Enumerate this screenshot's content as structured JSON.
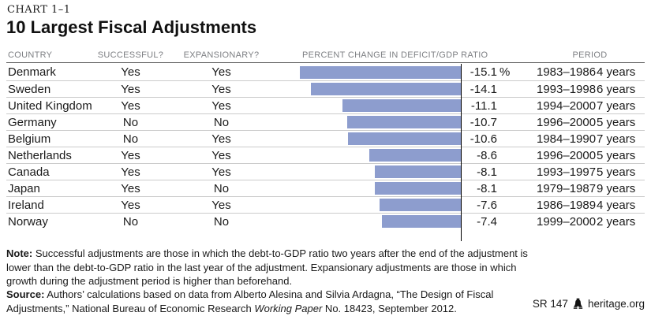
{
  "page": {
    "kicker": "CHART 1–1",
    "title": "10 Largest Fiscal Adjustments"
  },
  "table": {
    "headers": {
      "country": "COUNTRY",
      "successful": "SUCCESSFUL?",
      "expansionary": "EXPANSIONARY?",
      "percent_change": "PERCENT CHANGE IN DEFICIT/GDP RATIO",
      "period": "PERIOD"
    },
    "rows": [
      {
        "country": "Denmark",
        "successful": "Yes",
        "expansionary": "Yes",
        "value": -15.1,
        "value_label": "-15.1",
        "suffix": "%",
        "period": "1983–1986",
        "duration": "4 years"
      },
      {
        "country": "Sweden",
        "successful": "Yes",
        "expansionary": "Yes",
        "value": -14.1,
        "value_label": "-14.1",
        "suffix": "",
        "period": "1993–1998",
        "duration": "6 years"
      },
      {
        "country": "United Kingdom",
        "successful": "Yes",
        "expansionary": "Yes",
        "value": -11.1,
        "value_label": "-11.1",
        "suffix": "",
        "period": "1994–2000",
        "duration": "7 years"
      },
      {
        "country": "Germany",
        "successful": "No",
        "expansionary": "No",
        "value": -10.7,
        "value_label": "-10.7",
        "suffix": "",
        "period": "1996–2000",
        "duration": "5 years"
      },
      {
        "country": "Belgium",
        "successful": "No",
        "expansionary": "Yes",
        "value": -10.6,
        "value_label": "-10.6",
        "suffix": "",
        "period": "1984–1990",
        "duration": "7 years"
      },
      {
        "country": "Netherlands",
        "successful": "Yes",
        "expansionary": "Yes",
        "value": -8.6,
        "value_label": "-8.6",
        "suffix": "",
        "period": "1996–2000",
        "duration": "5 years"
      },
      {
        "country": "Canada",
        "successful": "Yes",
        "expansionary": "Yes",
        "value": -8.1,
        "value_label": "-8.1",
        "suffix": "",
        "period": "1993–1997",
        "duration": "5 years"
      },
      {
        "country": "Japan",
        "successful": "Yes",
        "expansionary": "No",
        "value": -8.1,
        "value_label": "-8.1",
        "suffix": "",
        "period": "1979–1987",
        "duration": "9 years"
      },
      {
        "country": "Ireland",
        "successful": "Yes",
        "expansionary": "Yes",
        "value": -7.6,
        "value_label": "-7.6",
        "suffix": "",
        "period": "1986–1989",
        "duration": "4 years"
      },
      {
        "country": "Norway",
        "successful": "No",
        "expansionary": "No",
        "value": -7.4,
        "value_label": "-7.4",
        "suffix": "",
        "period": "1999–2000",
        "duration": "2 years"
      }
    ]
  },
  "chart_data": {
    "type": "bar",
    "orientation": "horizontal",
    "title": "10 Largest Fiscal Adjustments",
    "value_axis_label": "Percent Change in Deficit/GDP Ratio",
    "categories": [
      "Denmark",
      "Sweden",
      "United Kingdom",
      "Germany",
      "Belgium",
      "Netherlands",
      "Canada",
      "Japan",
      "Ireland",
      "Norway"
    ],
    "values": [
      -15.1,
      -14.1,
      -11.1,
      -10.7,
      -10.6,
      -8.6,
      -8.1,
      -8.1,
      -7.6,
      -7.4
    ],
    "successful": [
      "Yes",
      "Yes",
      "Yes",
      "No",
      "No",
      "Yes",
      "Yes",
      "Yes",
      "Yes",
      "No"
    ],
    "expansionary": [
      "Yes",
      "Yes",
      "Yes",
      "No",
      "Yes",
      "Yes",
      "Yes",
      "No",
      "Yes",
      "No"
    ],
    "periods": [
      "1983–1986",
      "1993–1998",
      "1994–2000",
      "1996–2000",
      "1984–1990",
      "1996–2000",
      "1993–1997",
      "1979–1987",
      "1986–1989",
      "1999–2000"
    ],
    "durations": [
      "4 years",
      "6 years",
      "7 years",
      "5 years",
      "7 years",
      "5 years",
      "5 years",
      "9 years",
      "4 years",
      "2 years"
    ],
    "xlim": [
      -16,
      0
    ],
    "bar_color": "#8d9dce",
    "grid": false,
    "legend": false
  },
  "footer": {
    "note_label": "Note:",
    "note": " Successful adjustments are those in which the debt-to-GDP ratio two years after the end of the adjustment is lower than the debt-to-GDP ratio in the last year of the adjustment. Expansionary adjustments are those in which growth during the adjustment period is higher than beforehand.",
    "source_label": "Source:",
    "source_pre": " Authors’ calculations based on data from Alberto Alesina and Silvia Ardagna, “The Design of Fiscal Adjustments,” National Bureau of Economic Research ",
    "source_italic": "Working Paper",
    "source_post": " No. 18423, September 2012.",
    "report_id": "SR 147",
    "site": "heritage.org"
  },
  "colors": {
    "bar": "#8d9dce",
    "baseline": "#000000",
    "row_divider": "#cbcbcb",
    "header_rule": "#5f5f5f",
    "header_text": "#7d7f83"
  }
}
